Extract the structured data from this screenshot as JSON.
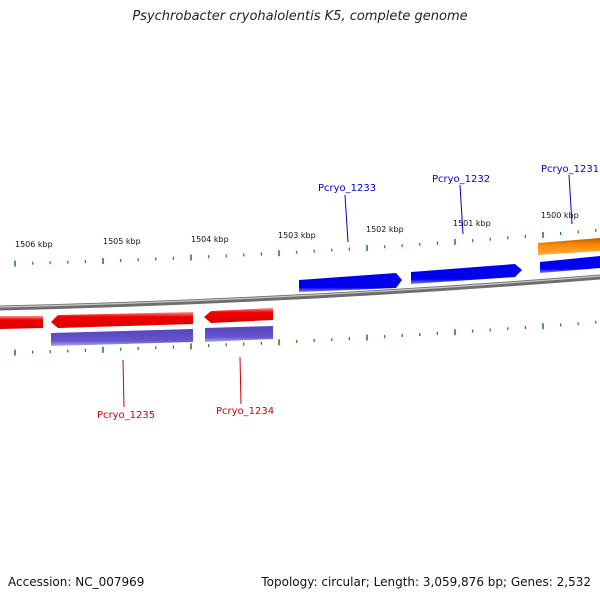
{
  "title": "Psychrobacter cryohalolentis K5, complete genome",
  "footer": {
    "accession": "Accession: NC_007969",
    "summary": "Topology: circular; Length: 3,059,876 bp; Genes: 2,532"
  },
  "colors": {
    "forward_gene": "#0000ee",
    "forward_gene_light": "#8080ff",
    "reverse_gene": "#ee0000",
    "reverse_gene_light": "#ff9090",
    "cds_band": "#6655cc",
    "orange_feature": "#ff8800",
    "tick": "#228b22",
    "backbone": "#808080",
    "forward_label": "#0000cc",
    "reverse_label": "#cc0000"
  },
  "scale_labels": [
    "1506 kbp",
    "1505 kbp",
    "1504 kbp",
    "1503 kbp",
    "1502 kbp",
    "1501 kbp",
    "1500 kbp"
  ],
  "gene_labels": {
    "pcryo_1231": "Pcryo_1231",
    "pcryo_1232": "Pcryo_1232",
    "pcryo_1233": "Pcryo_1233",
    "pcryo_1234": "Pcryo_1234",
    "pcryo_1235": "Pcryo_1235"
  }
}
